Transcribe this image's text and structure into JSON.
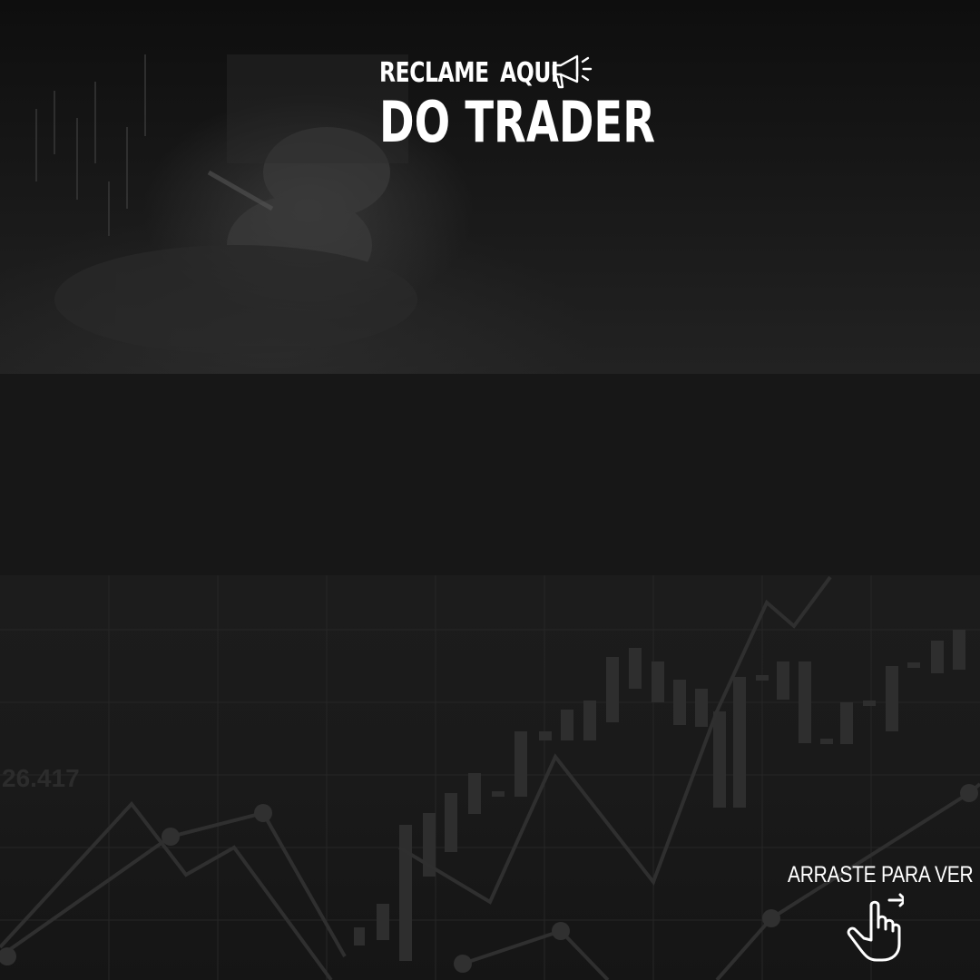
{
  "title": {
    "line1": "RECLAME AQUI",
    "line2": "DO TRADER",
    "icon": "megaphone-icon"
  },
  "background": {
    "ticker_value": "26.417"
  },
  "swipe": {
    "label": "ARRASTE PARA VER",
    "icon": "swipe-hand-icon"
  },
  "colors": {
    "text": "#ffffff",
    "background": "#171717"
  }
}
